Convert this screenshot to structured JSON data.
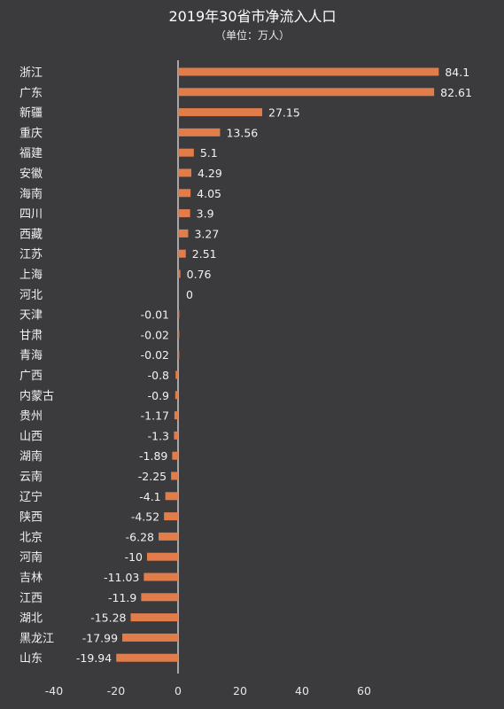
{
  "chart_data": {
    "type": "bar",
    "orientation": "horizontal",
    "title": "2019年30省市净流入人口",
    "subtitle": "（单位：万人）",
    "categories": [
      "浙江",
      "广东",
      "新疆",
      "重庆",
      "福建",
      "安徽",
      "海南",
      "四川",
      "西藏",
      "江苏",
      "上海",
      "河北",
      "天津",
      "甘肃",
      "青海",
      "广西",
      "内蒙古",
      "贵州",
      "山西",
      "湖南",
      "云南",
      "辽宁",
      "陕西",
      "北京",
      "河南",
      "吉林",
      "江西",
      "湖北",
      "黑龙江",
      "山东"
    ],
    "values": [
      84.1,
      82.61,
      27.15,
      13.56,
      5.1,
      4.29,
      4.05,
      3.9,
      3.27,
      2.51,
      0.76,
      0,
      -0.01,
      -0.02,
      -0.02,
      -0.8,
      -0.9,
      -1.17,
      -1.3,
      -1.89,
      -2.25,
      -4.1,
      -4.52,
      -6.28,
      -10,
      -11.03,
      -11.9,
      -15.28,
      -17.99,
      -19.94
    ],
    "value_labels": [
      "84.1",
      "82.61",
      "27.15",
      "13.56",
      "5.1",
      "4.29",
      "4.05",
      "3.9",
      "3.27",
      "2.51",
      "0.76",
      "0",
      "-0.01",
      "-0.02",
      "-0.02",
      "-0.8",
      "-0.9",
      "-1.17",
      "-1.3",
      "-1.89",
      "-2.25",
      "-4.1",
      "-4.52",
      "-6.28",
      "-10",
      "-11.03",
      "-11.9",
      "-15.28",
      "-17.99",
      "-19.94"
    ],
    "xlim": [
      -40,
      84.1
    ],
    "xticks": [
      "-40",
      "-20",
      "0",
      "20",
      "40",
      "60"
    ],
    "xtick_values": [
      -40,
      -20,
      0,
      20,
      40,
      60
    ],
    "grid": false,
    "colors": {
      "bar": "#e07d4b",
      "background": "#3b3b3d",
      "axis": "#eeeeee"
    }
  }
}
